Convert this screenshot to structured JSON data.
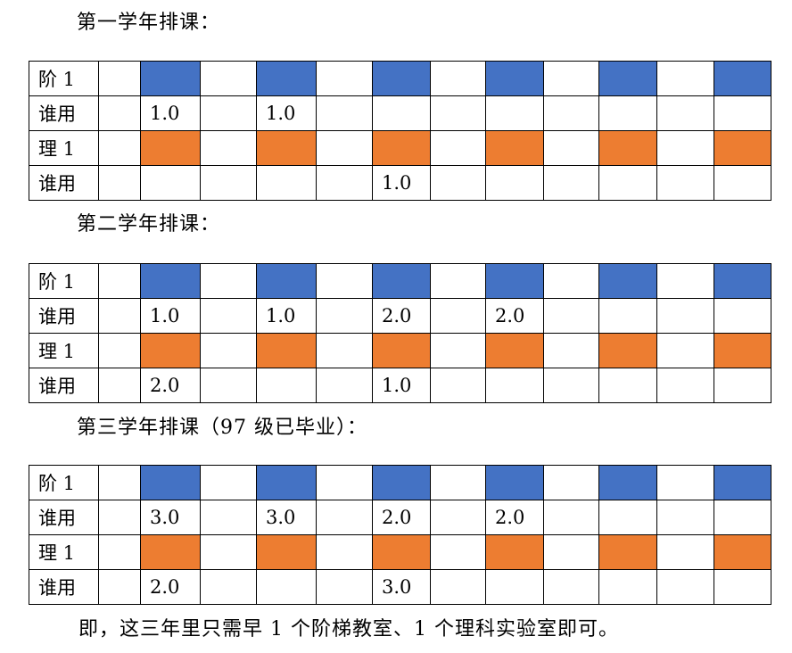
{
  "colors": {
    "stair_classroom": "#4472c4",
    "science_lab": "#ed7d31"
  },
  "sections": [
    {
      "heading": "第一学年排课：",
      "rows": [
        {
          "label": "阶 1",
          "type": "blue",
          "cells": [
            "",
            "",
            "",
            "",
            "",
            "",
            "",
            "",
            "",
            "",
            "",
            ""
          ]
        },
        {
          "label": "谁用",
          "type": "plain",
          "cells": [
            "",
            "1.0",
            "",
            "1.0",
            "",
            "",
            "",
            "",
            "",
            "",
            "",
            ""
          ]
        },
        {
          "label": "理 1",
          "type": "orange",
          "cells": [
            "",
            "",
            "",
            "",
            "",
            "",
            "",
            "",
            "",
            "",
            "",
            ""
          ]
        },
        {
          "label": "谁用",
          "type": "plain",
          "cells": [
            "",
            "",
            "",
            "",
            "",
            "1.0",
            "",
            "",
            "",
            "",
            "",
            ""
          ]
        }
      ]
    },
    {
      "heading": "第二学年排课：",
      "rows": [
        {
          "label": "阶 1",
          "type": "blue",
          "cells": [
            "",
            "",
            "",
            "",
            "",
            "",
            "",
            "",
            "",
            "",
            "",
            ""
          ]
        },
        {
          "label": "谁用",
          "type": "plain",
          "cells": [
            "",
            "1.0",
            "",
            "1.0",
            "",
            "2.0",
            "",
            "2.0",
            "",
            "",
            "",
            ""
          ]
        },
        {
          "label": "理 1",
          "type": "orange",
          "cells": [
            "",
            "",
            "",
            "",
            "",
            "",
            "",
            "",
            "",
            "",
            "",
            ""
          ]
        },
        {
          "label": "谁用",
          "type": "plain",
          "cells": [
            "",
            "2.0",
            "",
            "",
            "",
            "1.0",
            "",
            "",
            "",
            "",
            "",
            ""
          ]
        }
      ]
    },
    {
      "heading": "第三学年排课（97 级已毕业）：",
      "rows": [
        {
          "label": "阶 1",
          "type": "blue",
          "cells": [
            "",
            "",
            "",
            "",
            "",
            "",
            "",
            "",
            "",
            "",
            "",
            ""
          ]
        },
        {
          "label": "谁用",
          "type": "plain",
          "cells": [
            "",
            "3.0",
            "",
            "3.0",
            "",
            "2.0",
            "",
            "2.0",
            "",
            "",
            "",
            ""
          ]
        },
        {
          "label": "理 1",
          "type": "orange",
          "cells": [
            "",
            "",
            "",
            "",
            "",
            "",
            "",
            "",
            "",
            "",
            "",
            ""
          ]
        },
        {
          "label": "谁用",
          "type": "plain",
          "cells": [
            "",
            "2.0",
            "",
            "",
            "",
            "3.0",
            "",
            "",
            "",
            "",
            "",
            ""
          ]
        }
      ]
    }
  ],
  "footer": "即，这三年里只需早 1 个阶梯教室、1 个理科实验室即可。"
}
